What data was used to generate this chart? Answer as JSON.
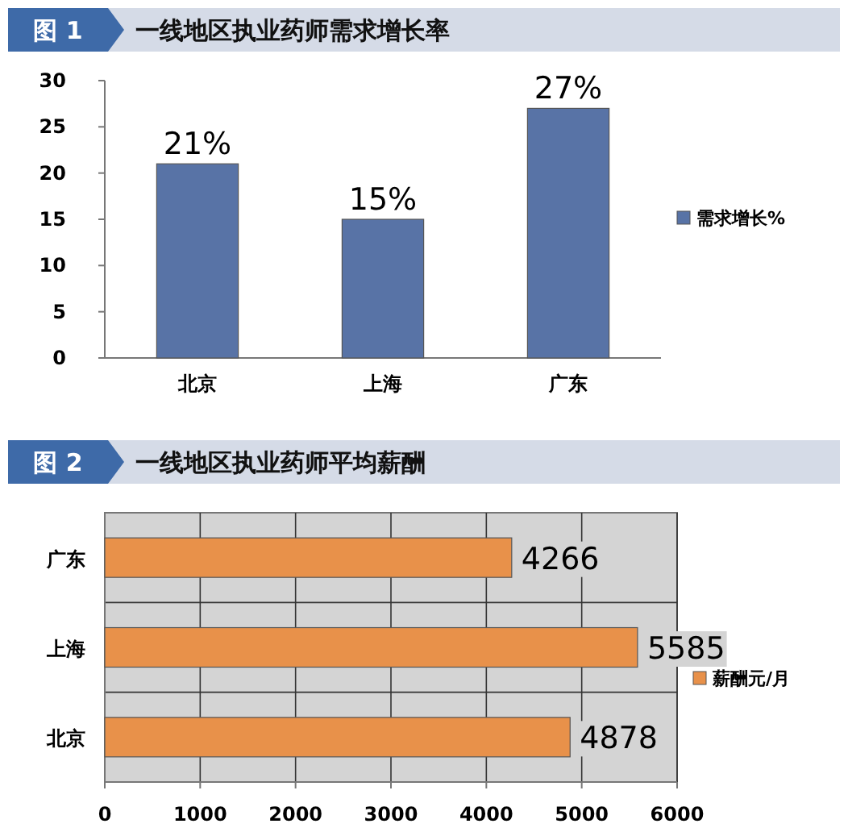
{
  "chart_data": [
    {
      "type": "bar",
      "title": "图 1",
      "subtitle": "一线地区执业药师需求增长率",
      "categories": [
        "北京",
        "上海",
        "广东"
      ],
      "series": [
        {
          "name": "需求增长%",
          "color": "#5873a6",
          "values": [
            21,
            15,
            27
          ],
          "value_labels": [
            "21%",
            "15%",
            "27%"
          ]
        }
      ],
      "ylim": [
        0,
        30
      ],
      "yticks": [
        0,
        5,
        10,
        15,
        20,
        25,
        30
      ],
      "legend": "right"
    },
    {
      "type": "bar",
      "orientation": "horizontal",
      "title": "图 2",
      "subtitle": "一线地区执业药师平均薪酬",
      "categories": [
        "广东",
        "上海",
        "北京"
      ],
      "series": [
        {
          "name": "薪酬元/月",
          "color": "#e8914a",
          "values": [
            4266,
            5585,
            4878
          ]
        }
      ],
      "xlim": [
        0,
        6000
      ],
      "xticks": [
        0,
        1000,
        2000,
        3000,
        4000,
        5000,
        6000
      ],
      "grid": true,
      "data_labels": true,
      "legend": "right"
    }
  ]
}
